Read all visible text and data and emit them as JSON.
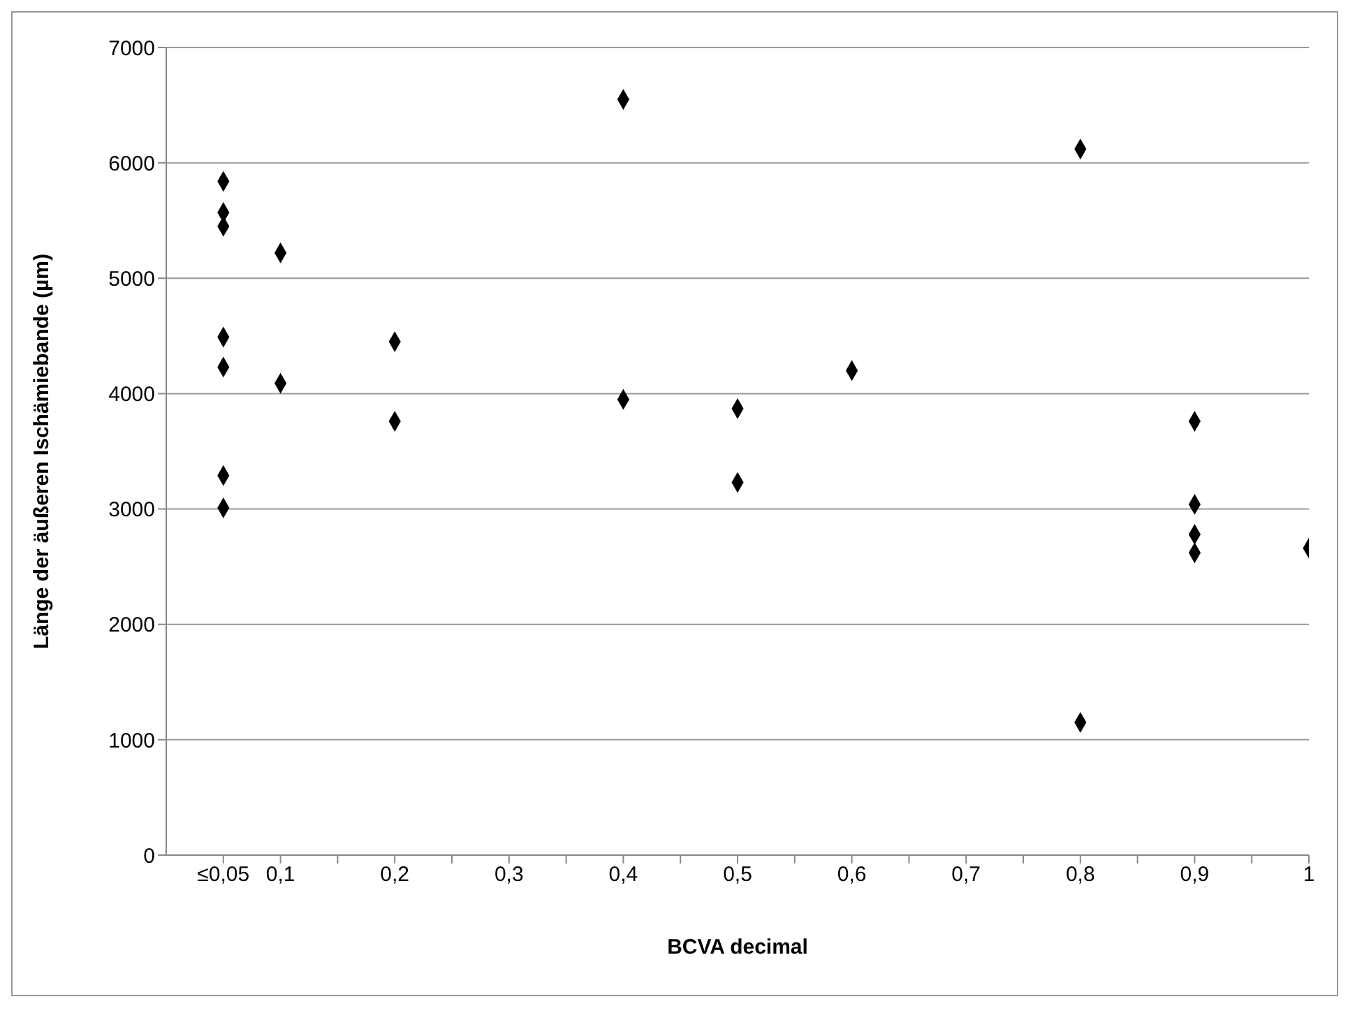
{
  "chart_data": {
    "type": "scatter",
    "xlabel": "BCVA decimal",
    "ylabel": "Länge der äußeren Ischämiebande (µm)",
    "x": [
      0.05,
      0.05,
      0.05,
      0.05,
      0.05,
      0.05,
      0.05,
      0.1,
      0.1,
      0.2,
      0.2,
      0.4,
      0.4,
      0.5,
      0.5,
      0.6,
      0.8,
      0.8,
      0.9,
      0.9,
      0.9,
      0.9,
      1
    ],
    "values": [
      5840,
      5570,
      5450,
      4490,
      4230,
      3290,
      3010,
      5220,
      4090,
      4450,
      3760,
      6550,
      3950,
      3870,
      3230,
      4200,
      6120,
      1150,
      3760,
      3040,
      2780,
      2620,
      2660
    ],
    "color": "#000000",
    "marker": "diamond",
    "xlim": [
      0,
      1
    ],
    "xticks": [
      {
        "value": 0.05,
        "label": "≤0,05"
      },
      {
        "value": 0.1,
        "label": "0,1"
      },
      {
        "value": 0.15,
        "label": null
      },
      {
        "value": 0.2,
        "label": "0,2"
      },
      {
        "value": 0.25,
        "label": null
      },
      {
        "value": 0.3,
        "label": "0,3"
      },
      {
        "value": 0.35,
        "label": null
      },
      {
        "value": 0.4,
        "label": "0,4"
      },
      {
        "value": 0.45,
        "label": null
      },
      {
        "value": 0.5,
        "label": "0,5"
      },
      {
        "value": 0.55,
        "label": null
      },
      {
        "value": 0.6,
        "label": "0,6"
      },
      {
        "value": 0.65,
        "label": null
      },
      {
        "value": 0.7,
        "label": "0,7"
      },
      {
        "value": 0.75,
        "label": null
      },
      {
        "value": 0.8,
        "label": "0,8"
      },
      {
        "value": 0.85,
        "label": null
      },
      {
        "value": 0.9,
        "label": "0,9"
      },
      {
        "value": 0.95,
        "label": null
      },
      {
        "value": 1,
        "label": "1"
      }
    ],
    "ylim": [
      0,
      7000
    ],
    "yticks": [
      0,
      1000,
      2000,
      3000,
      4000,
      5000,
      6000,
      7000
    ],
    "grid": "y"
  }
}
